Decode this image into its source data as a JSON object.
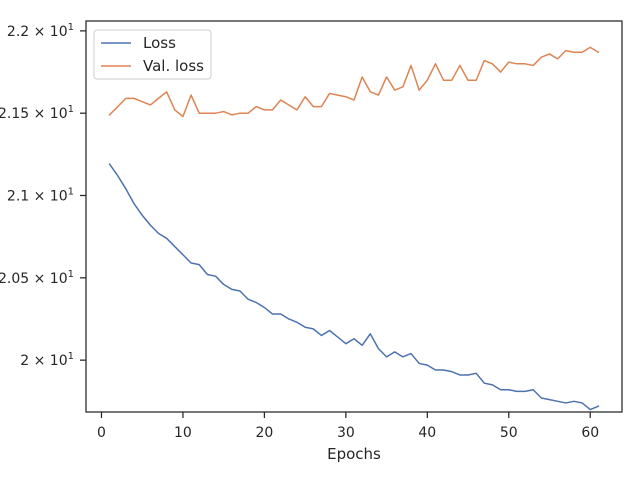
{
  "chart_data": {
    "type": "line",
    "xlabel": "Epochs",
    "ylabel": "",
    "xlim": [
      -1.9,
      63.9
    ],
    "ylim": [
      19.685,
      22.06
    ],
    "xticks": [
      0,
      10,
      20,
      30,
      40,
      50,
      60
    ],
    "xtick_labels": [
      "0",
      "10",
      "20",
      "30",
      "40",
      "50",
      "60"
    ],
    "yticks": [
      20.0,
      20.5,
      21.0,
      21.5,
      22.0
    ],
    "ytick_labels": [
      {
        "base": "2 × 10",
        "exp": "1"
      },
      {
        "base": "2.05 × 10",
        "exp": "1"
      },
      {
        "base": "2.1 × 10",
        "exp": "1"
      },
      {
        "base": "2.15 × 10",
        "exp": "1"
      },
      {
        "base": "2.2 × 10",
        "exp": "1"
      }
    ],
    "legend_position": "upper-left",
    "x": [
      1,
      2,
      3,
      4,
      5,
      6,
      7,
      8,
      9,
      10,
      11,
      12,
      13,
      14,
      15,
      16,
      17,
      18,
      19,
      20,
      21,
      22,
      23,
      24,
      25,
      26,
      27,
      28,
      29,
      30,
      31,
      32,
      33,
      34,
      35,
      36,
      37,
      38,
      39,
      40,
      41,
      42,
      43,
      44,
      45,
      46,
      47,
      48,
      49,
      50,
      51,
      52,
      53,
      54,
      55,
      56,
      57,
      58,
      59,
      60,
      61
    ],
    "series": [
      {
        "name": "Loss",
        "color": "#4c72b0",
        "values": [
          21.19,
          21.12,
          21.04,
          20.95,
          20.88,
          20.82,
          20.77,
          20.74,
          20.69,
          20.64,
          20.59,
          20.58,
          20.52,
          20.51,
          20.46,
          20.43,
          20.42,
          20.37,
          20.35,
          20.32,
          20.28,
          20.28,
          20.25,
          20.23,
          20.2,
          20.19,
          20.15,
          20.18,
          20.14,
          20.1,
          20.13,
          20.09,
          20.16,
          20.07,
          20.02,
          20.05,
          20.02,
          20.04,
          19.98,
          19.97,
          19.94,
          19.94,
          19.93,
          19.91,
          19.91,
          19.92,
          19.86,
          19.85,
          19.82,
          19.82,
          19.81,
          19.81,
          19.82,
          19.77,
          19.76,
          19.75,
          19.74,
          19.75,
          19.74,
          19.7,
          19.72
        ]
      },
      {
        "name": "Val. loss",
        "color": "#dd8452",
        "values": [
          21.49,
          21.54,
          21.59,
          21.59,
          21.57,
          21.55,
          21.59,
          21.63,
          21.52,
          21.48,
          21.61,
          21.5,
          21.5,
          21.5,
          21.51,
          21.49,
          21.5,
          21.5,
          21.54,
          21.52,
          21.52,
          21.58,
          21.55,
          21.52,
          21.6,
          21.54,
          21.54,
          21.62,
          21.61,
          21.6,
          21.58,
          21.72,
          21.63,
          21.61,
          21.72,
          21.64,
          21.66,
          21.79,
          21.64,
          21.7,
          21.8,
          21.7,
          21.7,
          21.79,
          21.7,
          21.7,
          21.82,
          21.8,
          21.75,
          21.81,
          21.8,
          21.8,
          21.79,
          21.84,
          21.86,
          21.83,
          21.88,
          21.87,
          21.87,
          21.9,
          21.87
        ]
      }
    ]
  }
}
